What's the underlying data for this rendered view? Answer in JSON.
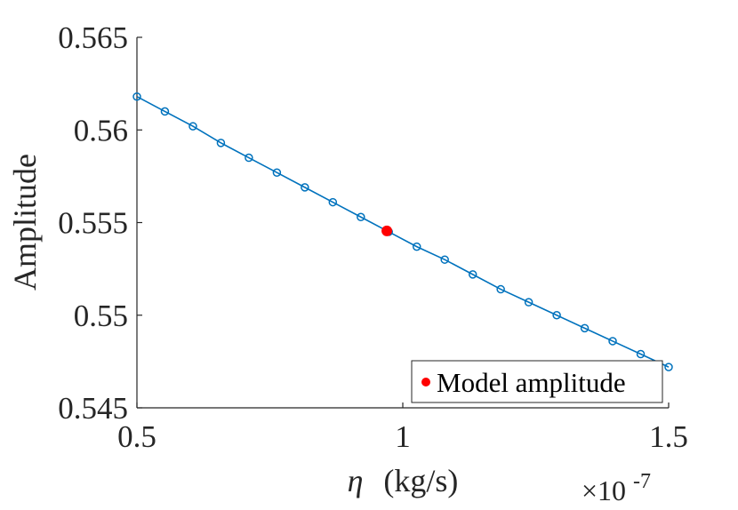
{
  "chart_data": {
    "type": "line",
    "title": "",
    "xlabel_symbol": "η",
    "xlabel_unit": "(kg/s)",
    "ylabel": "Amplitude",
    "x_exponent_base": "×10",
    "x_exponent_power": "-7",
    "xlim": [
      0.5,
      1.5
    ],
    "ylim": [
      0.545,
      0.565
    ],
    "xticks": [
      0.5,
      1.0,
      1.5
    ],
    "xtick_labels": [
      "0.5",
      "1",
      "1.5"
    ],
    "yticks": [
      0.545,
      0.55,
      0.555,
      0.56,
      0.565
    ],
    "ytick_labels": [
      "0.545",
      "0.55",
      "0.555",
      "0.56",
      "0.565"
    ],
    "grid": false,
    "legend_position": "bottom-right",
    "series": [
      {
        "name": "",
        "marker": "open-circle",
        "color": "#0072BD",
        "x": [
          0.5,
          0.5526,
          0.6053,
          0.6579,
          0.7105,
          0.7632,
          0.8158,
          0.8684,
          0.9211,
          0.9737,
          1.0263,
          1.0789,
          1.1316,
          1.1842,
          1.2368,
          1.2895,
          1.3421,
          1.3947,
          1.4474,
          1.5
        ],
        "y": [
          0.5618,
          0.561,
          0.5602,
          0.5593,
          0.5585,
          0.5577,
          0.5569,
          0.5561,
          0.5553,
          0.5545,
          0.5537,
          0.553,
          0.5522,
          0.5514,
          0.5507,
          0.55,
          0.5493,
          0.5486,
          0.5479,
          0.5472
        ]
      },
      {
        "name": "Model amplitude",
        "marker": "filled-dot",
        "color": "#FF0000",
        "x": [
          0.97
        ],
        "y": [
          0.55455
        ]
      }
    ]
  }
}
